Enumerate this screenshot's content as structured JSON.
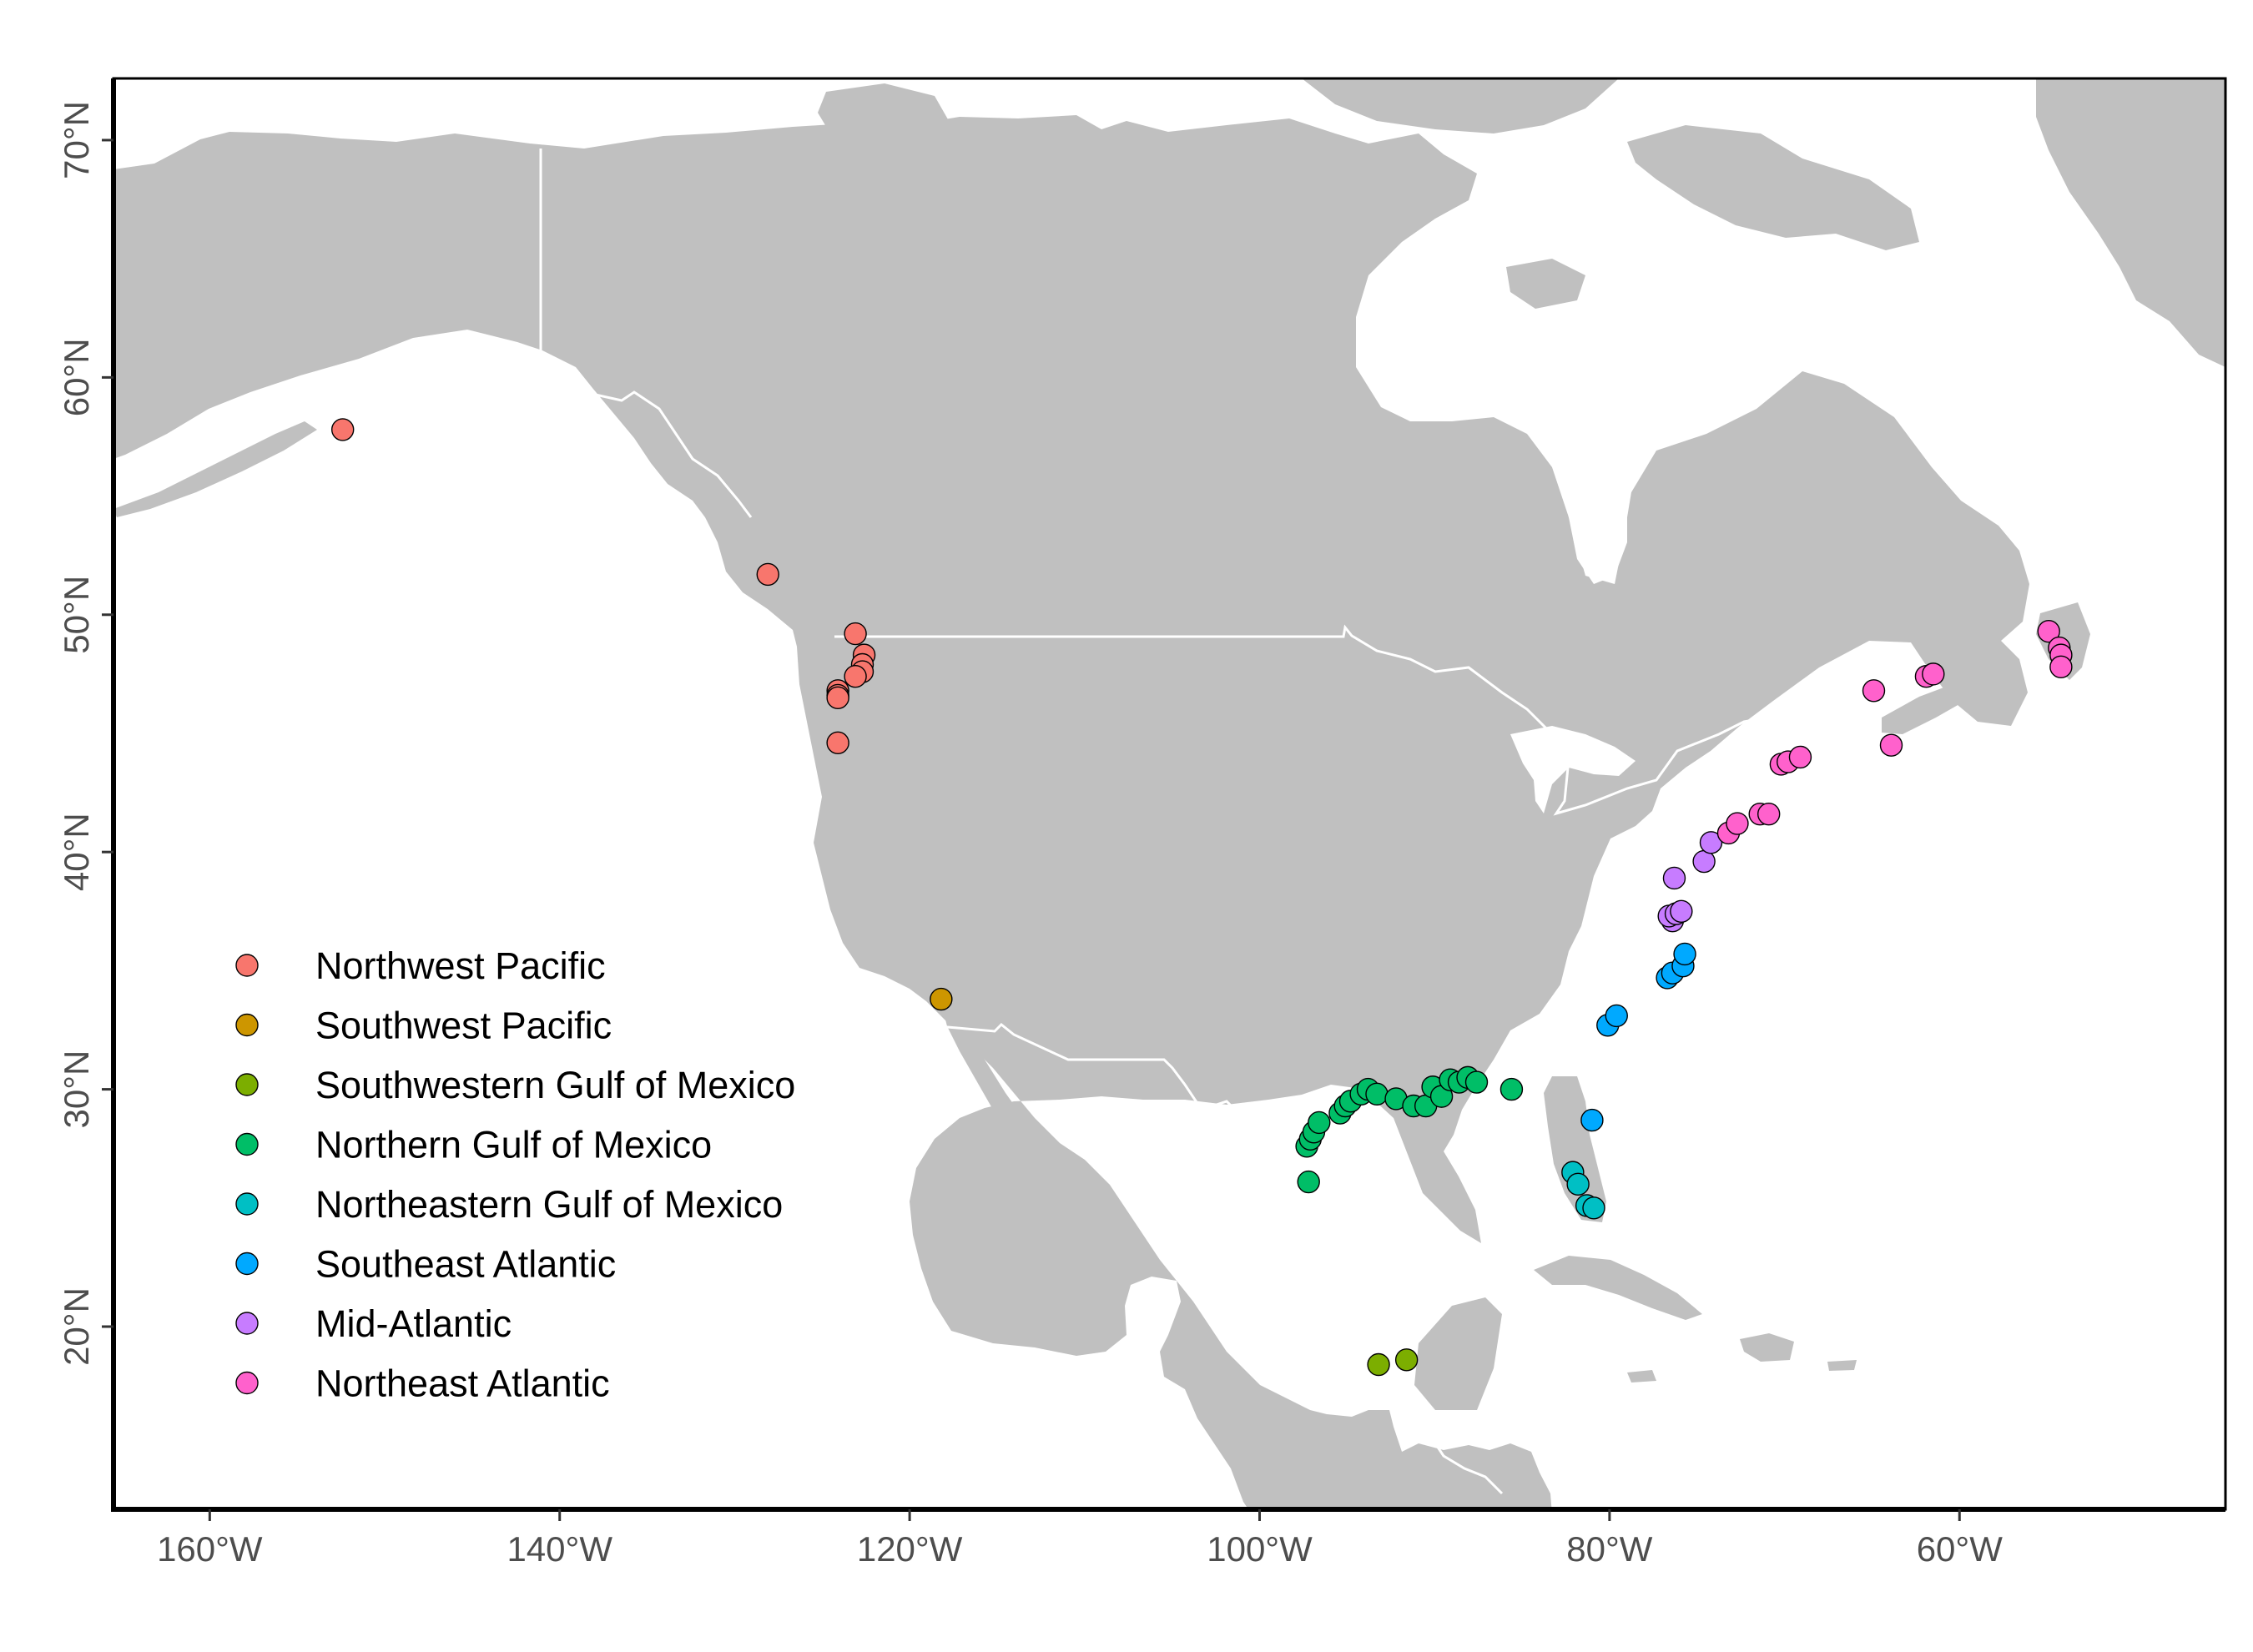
{
  "map": {
    "land_color": "#c0c0c0",
    "water_color": "#ffffff",
    "border_color": "#ffffff",
    "x_ticks": [
      {
        "lon": -160,
        "label": "160°W"
      },
      {
        "lon": -140,
        "label": "140°W"
      },
      {
        "lon": -120,
        "label": "120°W"
      },
      {
        "lon": -100,
        "label": "100°W"
      },
      {
        "lon": -80,
        "label": "80°W"
      },
      {
        "lon": -60,
        "label": "60°W"
      }
    ],
    "y_ticks": [
      {
        "lat": 20,
        "label": "20°N"
      },
      {
        "lat": 30,
        "label": "30°N"
      },
      {
        "lat": 40,
        "label": "40°N"
      },
      {
        "lat": 50,
        "label": "50°N"
      },
      {
        "lat": 60,
        "label": "60°N"
      },
      {
        "lat": 70,
        "label": "70°N"
      }
    ],
    "xlim": [
      -165.5,
      -44.8
    ],
    "ylim": [
      12.3,
      72.6
    ]
  },
  "legend": {
    "placement": "bottom-left, inside map",
    "items": [
      {
        "label": "Northwest Pacific",
        "color": "#F8766D"
      },
      {
        "label": "Southwest Pacific",
        "color": "#CD9600"
      },
      {
        "label": "Southwestern Gulf of Mexico",
        "color": "#7CAE00"
      },
      {
        "label": "Northern Gulf of Mexico",
        "color": "#00BE67"
      },
      {
        "label": "Northeastern Gulf of Mexico",
        "color": "#00BFC4"
      },
      {
        "label": "Southeast Atlantic",
        "color": "#00A9FF"
      },
      {
        "label": "Mid-Atlantic",
        "color": "#C77CFF"
      },
      {
        "label": "Northeast Atlantic",
        "color": "#FF61CC"
      }
    ]
  },
  "chart_data": {
    "type": "scatter",
    "xlabel": "",
    "ylabel": "",
    "xlim": [
      -165.5,
      -44.8
    ],
    "ylim": [
      12.3,
      72.6
    ],
    "grid": false,
    "series": [
      {
        "name": "Northwest Pacific",
        "color": "#F8766D",
        "points": [
          [
            -152.4,
            57.8
          ],
          [
            -128.1,
            51.7
          ],
          [
            -123.1,
            49.2
          ],
          [
            -122.6,
            48.3
          ],
          [
            -122.7,
            47.9
          ],
          [
            -122.7,
            47.6
          ],
          [
            -123.1,
            47.4
          ],
          [
            -124.1,
            46.8
          ],
          [
            -124.1,
            46.6
          ],
          [
            -124.1,
            46.5
          ],
          [
            -124.1,
            44.6
          ]
        ]
      },
      {
        "name": "Southwest Pacific",
        "color": "#CD9600",
        "points": [
          [
            -118.2,
            33.8
          ]
        ]
      },
      {
        "name": "Southwestern Gulf of Mexico",
        "color": "#7CAE00",
        "points": [
          [
            -93.2,
            18.4
          ],
          [
            -91.6,
            18.6
          ]
        ]
      },
      {
        "name": "Northern Gulf of Mexico",
        "color": "#00BE67",
        "points": [
          [
            -97.2,
            26.1
          ],
          [
            -97.3,
            27.6
          ],
          [
            -97.1,
            27.9
          ],
          [
            -96.9,
            28.2
          ],
          [
            -96.6,
            28.6
          ],
          [
            -95.4,
            29.0
          ],
          [
            -95.1,
            29.3
          ],
          [
            -94.8,
            29.5
          ],
          [
            -94.2,
            29.8
          ],
          [
            -93.8,
            30.0
          ],
          [
            -93.3,
            29.8
          ],
          [
            -92.2,
            29.6
          ],
          [
            -91.2,
            29.3
          ],
          [
            -90.5,
            29.3
          ],
          [
            -90.1,
            30.1
          ],
          [
            -89.6,
            29.7
          ],
          [
            -89.1,
            30.4
          ],
          [
            -88.6,
            30.3
          ],
          [
            -88.1,
            30.5
          ],
          [
            -87.6,
            30.3
          ],
          [
            -85.6,
            30.0
          ]
        ]
      },
      {
        "name": "Northeastern Gulf of Mexico",
        "color": "#00BFC4",
        "points": [
          [
            -82.1,
            26.5
          ],
          [
            -81.8,
            26.0
          ],
          [
            -81.3,
            25.1
          ],
          [
            -80.9,
            25.0
          ]
        ]
      },
      {
        "name": "Southeast Atlantic",
        "color": "#00A9FF",
        "points": [
          [
            -81.0,
            28.7
          ],
          [
            -80.1,
            32.7
          ],
          [
            -79.6,
            33.1
          ],
          [
            -76.7,
            34.7
          ],
          [
            -76.4,
            34.9
          ],
          [
            -75.8,
            35.2
          ],
          [
            -75.7,
            35.7
          ]
        ]
      },
      {
        "name": "Mid-Atlantic",
        "color": "#C77CFF",
        "points": [
          [
            -76.4,
            37.1
          ],
          [
            -76.6,
            37.3
          ],
          [
            -76.2,
            37.4
          ],
          [
            -75.9,
            37.5
          ],
          [
            -76.3,
            38.9
          ],
          [
            -74.6,
            39.6
          ],
          [
            -74.2,
            40.4
          ]
        ]
      },
      {
        "name": "Northeast Atlantic",
        "color": "#FF61CC",
        "points": [
          [
            -73.2,
            40.8
          ],
          [
            -72.7,
            41.2
          ],
          [
            -71.4,
            41.6
          ],
          [
            -70.9,
            41.6
          ],
          [
            -70.2,
            43.7
          ],
          [
            -69.8,
            43.8
          ],
          [
            -69.1,
            44.0
          ],
          [
            -64.9,
            46.8
          ],
          [
            -63.9,
            44.5
          ],
          [
            -61.9,
            47.4
          ],
          [
            -61.5,
            47.5
          ],
          [
            -54.9,
            49.3
          ],
          [
            -54.3,
            48.6
          ],
          [
            -54.2,
            48.3
          ],
          [
            -54.2,
            47.8
          ]
        ]
      }
    ]
  }
}
